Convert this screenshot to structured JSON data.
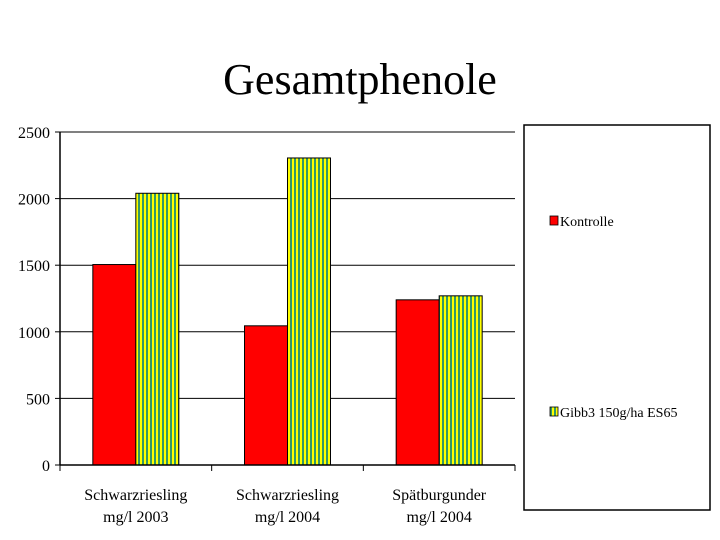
{
  "chart_data": {
    "type": "bar",
    "title": "Gesamtphenole",
    "xlabel": "",
    "ylabel": "",
    "ylim": [
      0,
      2500
    ],
    "yticks": [
      0,
      500,
      1000,
      1500,
      2000,
      2500
    ],
    "grid": true,
    "legend_placement": "right",
    "categories": [
      [
        "Schwarzriesling",
        "mg/l 2003"
      ],
      [
        "Schwarzriesling",
        "mg/l  2004"
      ],
      [
        "Spätburgunder",
        "mg/l 2004"
      ]
    ],
    "series": [
      {
        "name": "Kontrolle",
        "values": [
          1505,
          1045,
          1240
        ],
        "color": "#ff0000",
        "pattern": "solid"
      },
      {
        "name": "Gibb3 150g/ha ES65",
        "values": [
          2040,
          2305,
          1270
        ],
        "color": "#ffff00",
        "stripe_color": "#339966",
        "pattern": "vertical-stripes"
      }
    ]
  }
}
